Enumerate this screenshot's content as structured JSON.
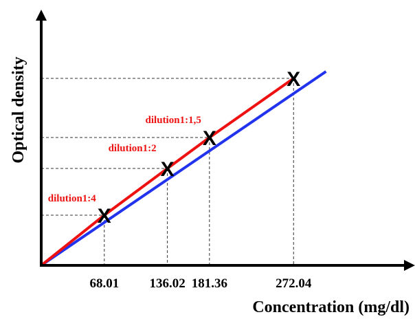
{
  "chart_data": {
    "type": "line",
    "xlabel": "Concentration (mg/dl)",
    "ylabel": "Optical density",
    "x_ticks": [
      "68.01",
      "136.02",
      "181.36",
      "272.04"
    ],
    "xlim": [
      0,
      300
    ],
    "grid": false,
    "series": [
      {
        "color": "#2233ee",
        "x": [
          0,
          300
        ],
        "y": [
          0,
          300
        ]
      },
      {
        "color": "#ee1111",
        "x": [
          0,
          68.01,
          136.02,
          181.36,
          272.04
        ],
        "y": [
          0,
          73,
          141,
          186,
          272
        ]
      }
    ],
    "points": [
      {
        "x": 68.01,
        "y": 73,
        "marker": "X",
        "label": "dilution1:4"
      },
      {
        "x": 136.02,
        "y": 141,
        "marker": "X",
        "label": "dilution1:2"
      },
      {
        "x": 181.36,
        "y": 186,
        "marker": "X",
        "label": "dilution1:1,5"
      },
      {
        "x": 272.04,
        "y": 272,
        "marker": "X",
        "label": ""
      }
    ],
    "colors": {
      "axis": "#000000",
      "guide": "#333333",
      "label": "#ee1111"
    }
  }
}
